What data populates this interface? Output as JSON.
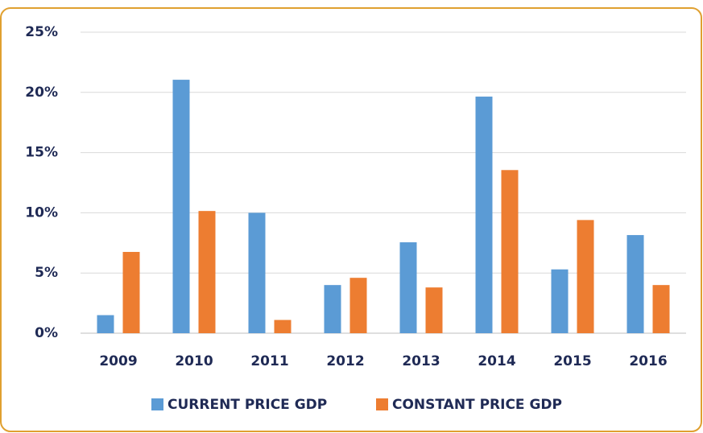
{
  "chart_data": {
    "type": "bar",
    "categories": [
      "2009",
      "2010",
      "2011",
      "2012",
      "2013",
      "2014",
      "2015",
      "2016"
    ],
    "series": [
      {
        "name": "CURRENT PRICE GDP",
        "color": "#5b9bd5",
        "values": [
          1.5,
          21.05,
          10.0,
          4.0,
          7.55,
          19.65,
          5.3,
          8.15
        ]
      },
      {
        "name": "CONSTANT PRICE GDP",
        "color": "#ed7d31",
        "values": [
          6.75,
          10.15,
          1.1,
          4.6,
          3.8,
          13.55,
          9.4,
          4.0
        ]
      }
    ],
    "ylim": [
      0,
      25
    ],
    "yticks": [
      {
        "value": 0,
        "label": "0%"
      },
      {
        "value": 5,
        "label": "5%"
      },
      {
        "value": 10,
        "label": "10%"
      },
      {
        "value": 15,
        "label": "15%"
      },
      {
        "value": 20,
        "label": "20%"
      },
      {
        "value": 25,
        "label": "25%"
      }
    ],
    "grid": true,
    "legend": "bottom"
  }
}
